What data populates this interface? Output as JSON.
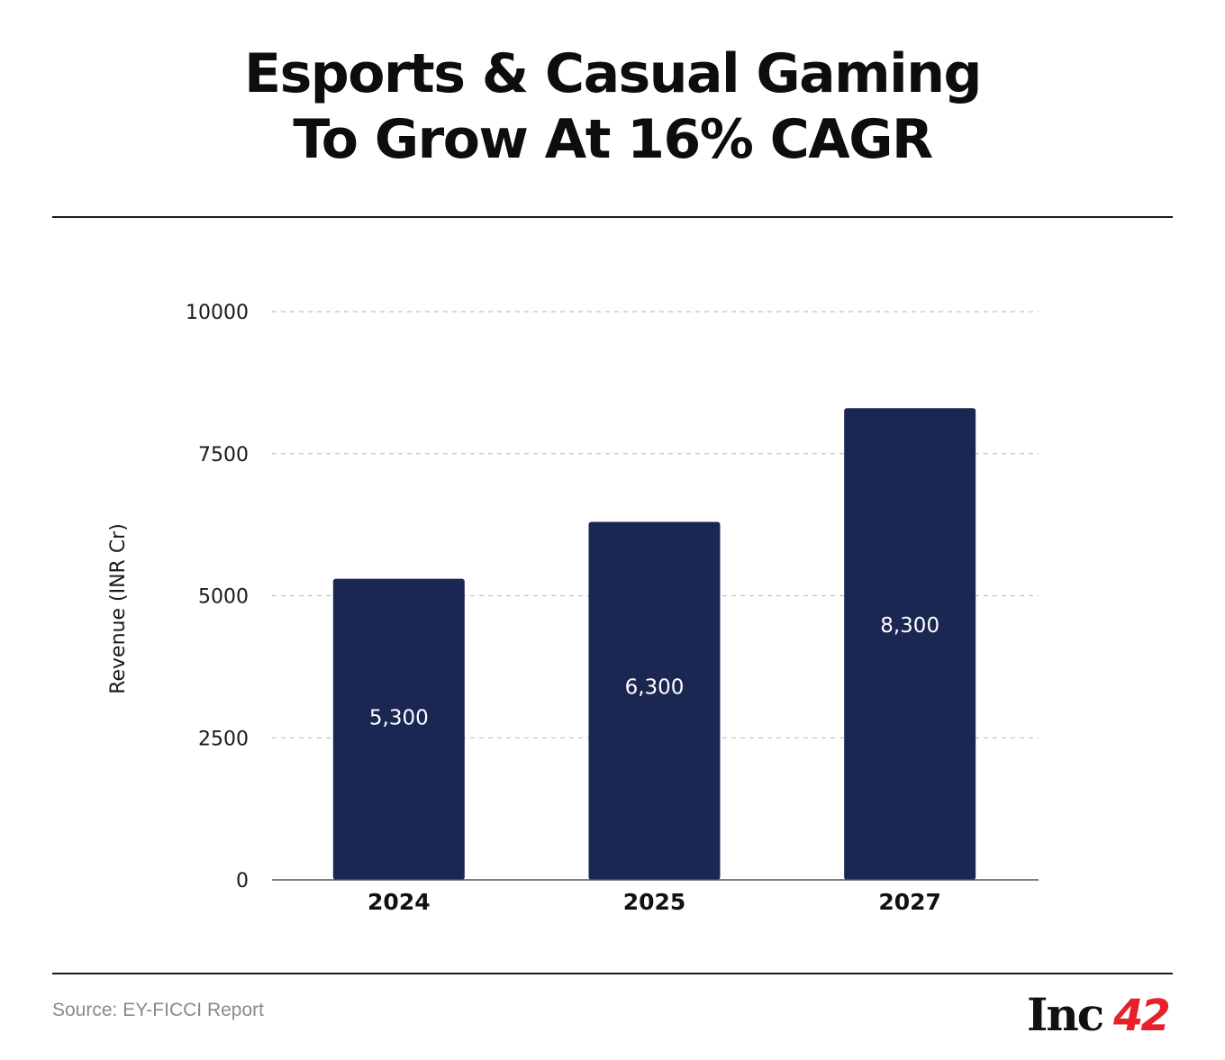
{
  "header": {
    "title_line1": "Esports & Casual Gaming",
    "title_line2": "To Grow At 16% CAGR"
  },
  "chart_data": {
    "type": "bar",
    "title": "Esports & Casual Gaming To Grow At 16% CAGR",
    "categories": [
      "2024",
      "2025",
      "2027"
    ],
    "values": [
      5300,
      6300,
      8300
    ],
    "data_labels": [
      "5,300",
      "6,300",
      "8,300"
    ],
    "xlabel": "",
    "ylabel": "Revenue (INR Cr)",
    "ylim": [
      0,
      10000
    ],
    "yticks": [
      0,
      2500,
      5000,
      7500,
      10000
    ],
    "ytick_labels": [
      "0",
      "2500",
      "5000",
      "7500",
      "10000"
    ],
    "grid": true,
    "bar_color": "#1b2753",
    "label_color": "#ffffff"
  },
  "footer": {
    "source": "Source: EY-FICCI Report",
    "logo_text": "Inc",
    "logo_number": "42",
    "logo_accent_color": "#e8202a"
  }
}
